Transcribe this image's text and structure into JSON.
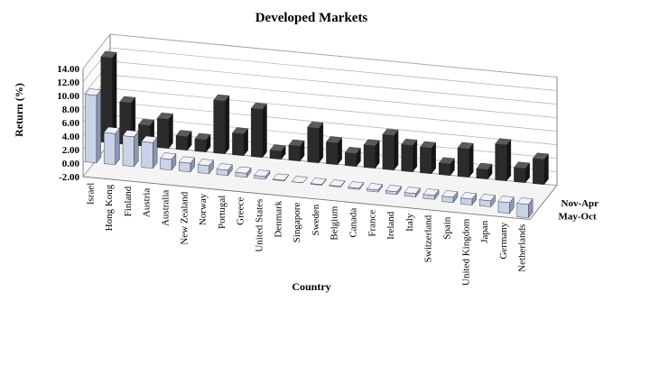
{
  "chart_data": {
    "type": "bar",
    "title": "Developed Markets",
    "xlabel": "Country",
    "ylabel": "Return (%)",
    "ylim": [
      -2,
      14
    ],
    "yticks": [
      "14.00",
      "12.00",
      "10.00",
      "8.00",
      "6.00",
      "4.00",
      "2.00",
      "0.00",
      "-2.00"
    ],
    "grid": true,
    "categories": [
      "Israel",
      "Hong Kong",
      "Finland",
      "Austria",
      "Australia",
      "New Zealand",
      "Norway",
      "Portugal",
      "Greece",
      "United States",
      "Denmark",
      "Singapore",
      "Sweden",
      "Belgium",
      "Canada",
      "France",
      "Ireland",
      "Italy",
      "Switzerland",
      "Spain",
      "United Kingdom",
      "Japan",
      "Germany",
      "Netherlands"
    ],
    "series": [
      {
        "name": "May-Oct",
        "color": "#b8c4dc",
        "values": [
          10.0,
          4.6,
          4.4,
          3.8,
          1.6,
          1.3,
          1.2,
          0.8,
          0.6,
          0.4,
          0.1,
          0.0,
          -0.1,
          -0.1,
          -0.2,
          -0.3,
          -0.4,
          -0.5,
          -0.6,
          -0.8,
          -0.9,
          -0.9,
          -1.6,
          -2.0
        ]
      },
      {
        "name": "Nov-Apr",
        "color": "#2e2e2e",
        "values": [
          12.6,
          6.2,
          3.1,
          4.3,
          2.0,
          1.8,
          7.8,
          3.2,
          7.1,
          1.2,
          2.2,
          5.1,
          3.2,
          1.9,
          3.3,
          5.1,
          3.9,
          3.8,
          1.7,
          4.2,
          1.4,
          5.3,
          2.1,
          3.7
        ]
      }
    ]
  }
}
